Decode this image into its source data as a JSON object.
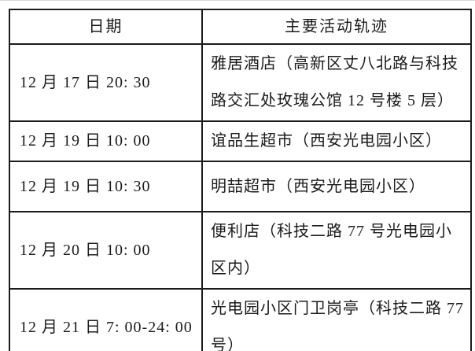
{
  "page": {
    "background": "#ffffff",
    "border_color": "#1b1b1b",
    "text_color": "#1b1b1b"
  },
  "table": {
    "header": {
      "date": "日期",
      "track": "主要活动轨迹"
    },
    "rows": [
      {
        "date": "12 月 17 日  20:  30",
        "track": "雅居酒店（高新区丈八北路与科技路交汇处玫瑰公馆 12 号楼 5 层）"
      },
      {
        "date": "12 月 19 日 10:  00",
        "track": "谊品生超市（西安光电园小区）"
      },
      {
        "date": "12 月 19 日 10:  30",
        "track": "明喆超市（西安光电园小区）"
      },
      {
        "date": "12 月 20 日 10:  00",
        "track": "便利店（科技二路 77 号光电园小区内）"
      },
      {
        "date": "12 月 21 日 7: 00-24: 00",
        "track": "光电园小区门卫岗亭（科技二路 77 号）"
      }
    ]
  }
}
